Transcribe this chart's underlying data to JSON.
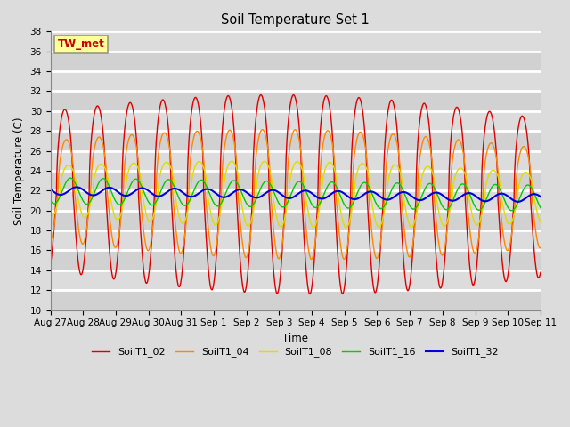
{
  "title": "Soil Temperature Set 1",
  "ylabel": "Soil Temperature (C)",
  "xlabel": "Time",
  "ylim": [
    10,
    38
  ],
  "yticks": [
    10,
    12,
    14,
    16,
    18,
    20,
    22,
    24,
    26,
    28,
    30,
    32,
    34,
    36,
    38
  ],
  "background_color": "#dcdcdc",
  "plot_bg_color": "#dcdcdc",
  "grid_color": "#ffffff",
  "annotation_text": "TW_met",
  "annotation_bg": "#ffff99",
  "annotation_border": "#aaaaaa",
  "series": [
    {
      "label": "SoilT1_02",
      "color": "#dd0000",
      "lw": 1.0
    },
    {
      "label": "SoilT1_04",
      "color": "#ff8800",
      "lw": 1.0
    },
    {
      "label": "SoilT1_08",
      "color": "#dddd00",
      "lw": 1.0
    },
    {
      "label": "SoilT1_16",
      "color": "#00cc00",
      "lw": 1.0
    },
    {
      "label": "SoilT1_32",
      "color": "#0000dd",
      "lw": 1.5
    }
  ],
  "xtick_labels": [
    "Aug 27",
    "Aug 28",
    "Aug 29",
    "Aug 30",
    "Aug 31",
    "Sep 1",
    "Sep 2",
    "Sep 3",
    "Sep 4",
    "Sep 5",
    "Sep 6",
    "Sep 7",
    "Sep 8",
    "Sep 9",
    "Sep 10",
    "Sep 11"
  ],
  "n_days": 15,
  "pts_per_day": 96
}
